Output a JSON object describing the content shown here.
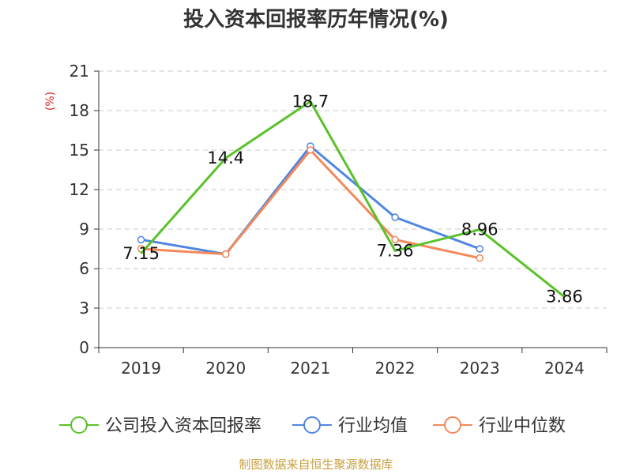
{
  "chart_data": {
    "type": "line",
    "title": "投入资本回报率历年情况(%)",
    "unit_label": "(%)",
    "categories": [
      "2019",
      "2020",
      "2021",
      "2022",
      "2023",
      "2024"
    ],
    "ylim": [
      0,
      21
    ],
    "yticks": [
      0,
      3,
      6,
      9,
      12,
      15,
      18,
      21
    ],
    "grid": true,
    "series": [
      {
        "name": "公司投入资本回报率",
        "color": "#5ac229",
        "values": [
          7.15,
          14.4,
          18.7,
          7.36,
          8.96,
          3.86
        ],
        "data_labels": [
          "7.15",
          "14.4",
          "18.7",
          "7.36",
          "8.96",
          "3.86"
        ],
        "show_markers": false
      },
      {
        "name": "行业均值",
        "color": "#4f86e0",
        "values": [
          8.2,
          7.1,
          15.3,
          9.9,
          7.5,
          null
        ],
        "show_markers": true
      },
      {
        "name": "行业中位数",
        "color": "#f2895a",
        "values": [
          7.5,
          7.1,
          15.0,
          8.2,
          6.8,
          null
        ],
        "show_markers": true
      }
    ],
    "legend_position": "bottom",
    "source": "制图数据来自恒生聚源数据库"
  }
}
